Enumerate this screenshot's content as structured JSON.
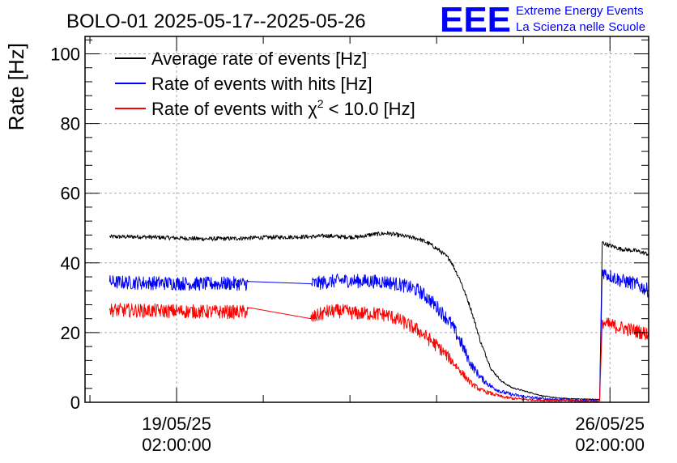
{
  "header": {
    "title": "BOLO-01 2025-05-17--2025-05-26",
    "logo_text": "EEE",
    "org_line1": "Extreme Energy Events",
    "org_line2": "La Scienza nelle Scuole"
  },
  "colors": {
    "average": "#000000",
    "hits": "#0000ff",
    "chi2": "#ff0000",
    "logo": "#0000ff",
    "grid": "#aaaaaa"
  },
  "chart_data": {
    "type": "line",
    "title": "BOLO-01 2025-05-17--2025-05-26",
    "ylabel": "Rate [Hz]",
    "xlabel": "",
    "ylim": [
      0,
      105
    ],
    "x_range": [
      "2025-05-17 14:30",
      "2025-05-26 17:00"
    ],
    "yticks": [
      "0",
      "20",
      "40",
      "60",
      "80",
      "100"
    ],
    "xticks": [
      {
        "x": "2025-05-19 02:00:00",
        "date": "19/05/25",
        "time": "02:00:00"
      },
      {
        "x": "2025-05-26 02:00:00",
        "date": "26/05/25",
        "time": "02:00:00"
      }
    ],
    "grid": true,
    "legend_position": "top-left",
    "series": [
      {
        "name": "Average rate of events [Hz]",
        "legend_main": "Average rate of events [Hz]",
        "color": "#000000",
        "noise": 0.6,
        "x": [
          "2025-05-18 00:00",
          "2025-05-18 12:00",
          "2025-05-19 00:00",
          "2025-05-19 12:00",
          "2025-05-20 00:00",
          "2025-05-20 12:00",
          "2025-05-21 03:00",
          "2025-05-21 06:00",
          "2025-05-21 12:00",
          "2025-05-21 18:00",
          "2025-05-22 00:00",
          "2025-05-22 06:00",
          "2025-05-22 12:00",
          "2025-05-22 18:00",
          "2025-05-23 00:00",
          "2025-05-23 04:00",
          "2025-05-23 08:00",
          "2025-05-23 12:00",
          "2025-05-23 16:00",
          "2025-05-23 20:00",
          "2025-05-24 00:00",
          "2025-05-24 04:00",
          "2025-05-24 08:00",
          "2025-05-24 12:00",
          "2025-05-24 18:00",
          "2025-05-25 00:00",
          "2025-05-25 06:00",
          "2025-05-25 12:00",
          "2025-05-25 18:00",
          "2025-05-25 22:00",
          "2025-05-25 23:00",
          "2025-05-26 00:00",
          "2025-05-26 06:00",
          "2025-05-26 12:00",
          "2025-05-26 17:00"
        ],
        "values": [
          47.5,
          47.5,
          47.2,
          46.9,
          47.0,
          47.3,
          47.5,
          47.5,
          47.8,
          47.5,
          47.4,
          48.2,
          48.5,
          47.7,
          46.9,
          45.5,
          43.5,
          41.0,
          35.0,
          27.0,
          17.0,
          9.5,
          6.0,
          4.2,
          3.0,
          1.8,
          1.2,
          1.0,
          0.9,
          0.8,
          46.0,
          45.5,
          44.0,
          43.5,
          42.5
        ]
      },
      {
        "name": "Rate of events with hits [Hz]",
        "legend_main": "Rate of events with hits [Hz]",
        "color": "#0000ff",
        "noise": 2.0,
        "x": [
          "2025-05-18 00:00",
          "2025-05-18 12:00",
          "2025-05-19 00:00",
          "2025-05-19 12:00",
          "2025-05-20 00:00",
          "2025-05-20 06:00",
          "2025-05-21 06:00",
          "2025-05-21 12:00",
          "2025-05-21 18:00",
          "2025-05-22 00:00",
          "2025-05-22 06:00",
          "2025-05-22 12:00",
          "2025-05-22 18:00",
          "2025-05-23 00:00",
          "2025-05-23 04:00",
          "2025-05-23 08:00",
          "2025-05-23 12:00",
          "2025-05-23 16:00",
          "2025-05-23 20:00",
          "2025-05-24 00:00",
          "2025-05-24 04:00",
          "2025-05-24 08:00",
          "2025-05-24 12:00",
          "2025-05-24 18:00",
          "2025-05-25 00:00",
          "2025-05-25 06:00",
          "2025-05-25 12:00",
          "2025-05-25 18:00",
          "2025-05-25 22:00",
          "2025-05-25 23:00",
          "2025-05-26 00:00",
          "2025-05-26 06:00",
          "2025-05-26 12:00",
          "2025-05-26 17:00"
        ],
        "values": [
          34.5,
          34.3,
          34.2,
          34.0,
          34.1,
          34.0,
          34.0,
          34.5,
          35.0,
          34.8,
          34.7,
          34.5,
          33.5,
          32.0,
          29.5,
          26.5,
          23.0,
          17.5,
          11.0,
          7.0,
          4.5,
          3.0,
          2.2,
          1.5,
          1.0,
          0.8,
          0.6,
          0.5,
          0.4,
          38.0,
          37.0,
          35.0,
          34.0,
          32.0
        ],
        "gap": [
          [
            5,
            6
          ]
        ]
      },
      {
        "name": "Rate of events with χ2 < 10.0 [Hz]",
        "legend_main": "Rate of events with χ",
        "legend_sup": "2",
        "legend_tail": " < 10.0 [Hz]",
        "color": "#ff0000",
        "noise": 2.0,
        "x": [
          "2025-05-18 00:00",
          "2025-05-18 12:00",
          "2025-05-19 00:00",
          "2025-05-19 12:00",
          "2025-05-20 00:00",
          "2025-05-20 06:00",
          "2025-05-21 06:00",
          "2025-05-21 12:00",
          "2025-05-21 18:00",
          "2025-05-22 00:00",
          "2025-05-22 06:00",
          "2025-05-22 12:00",
          "2025-05-22 18:00",
          "2025-05-23 00:00",
          "2025-05-23 04:00",
          "2025-05-23 08:00",
          "2025-05-23 12:00",
          "2025-05-23 16:00",
          "2025-05-23 20:00",
          "2025-05-24 00:00",
          "2025-05-24 04:00",
          "2025-05-24 08:00",
          "2025-05-24 12:00",
          "2025-05-24 18:00",
          "2025-05-25 00:00",
          "2025-05-25 06:00",
          "2025-05-25 12:00",
          "2025-05-25 18:00",
          "2025-05-25 22:00",
          "2025-05-25 23:00",
          "2025-05-26 00:00",
          "2025-05-26 06:00",
          "2025-05-26 12:00",
          "2025-05-26 17:00"
        ],
        "values": [
          26.5,
          26.3,
          26.2,
          26.0,
          25.9,
          26.0,
          24.0,
          26.0,
          26.2,
          25.5,
          25.5,
          25.0,
          23.0,
          20.5,
          18.0,
          15.5,
          12.5,
          9.0,
          5.5,
          3.5,
          2.5,
          1.6,
          1.1,
          0.8,
          0.6,
          0.5,
          0.4,
          0.3,
          0.3,
          23.5,
          22.5,
          21.5,
          20.5,
          19.5
        ],
        "gap": [
          [
            5,
            6
          ]
        ]
      }
    ]
  }
}
